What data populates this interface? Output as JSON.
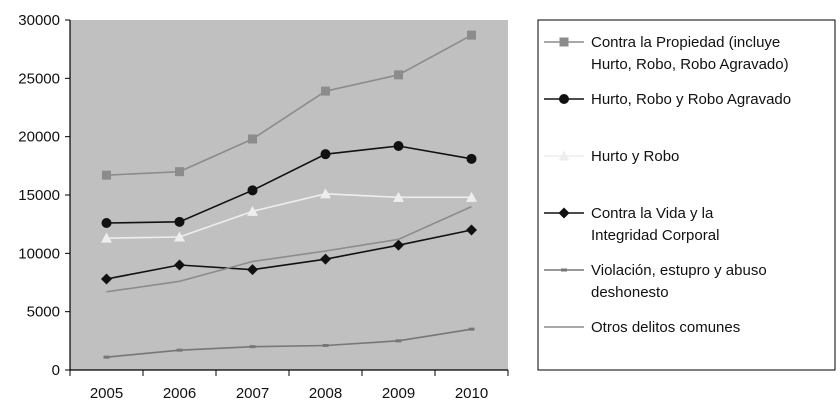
{
  "chart_data": {
    "type": "line",
    "title": "",
    "xlabel": "",
    "ylabel": "",
    "categories": [
      "2005",
      "2006",
      "2007",
      "2008",
      "2009",
      "2010"
    ],
    "ylim": [
      0,
      30000
    ],
    "yticks": [
      0,
      5000,
      10000,
      15000,
      20000,
      25000,
      30000
    ],
    "grid": false,
    "plot_background": "#c0c0c0",
    "legend_position": "right",
    "series": [
      {
        "name": "Contra la Propiedad (incluye Hurto, Robo, Robo Agravado)",
        "legend_lines": [
          "Contra la Propiedad (incluye",
          "Hurto, Robo, Robo Agravado)"
        ],
        "values": [
          16700,
          17000,
          19800,
          23900,
          25300,
          28700
        ],
        "color": "#8c8c8c",
        "marker": "square"
      },
      {
        "name": "Hurto, Robo y Robo Agravado",
        "legend_lines": [
          "Hurto, Robo y Robo Agravado"
        ],
        "values": [
          12600,
          12700,
          15400,
          18500,
          19200,
          18100
        ],
        "color": "#111111",
        "marker": "circle"
      },
      {
        "name": "Hurto y Robo",
        "legend_lines": [
          "Hurto y Robo"
        ],
        "values": [
          11300,
          11400,
          13600,
          15100,
          14800,
          14800
        ],
        "color": "#eeeeee",
        "marker": "triangle"
      },
      {
        "name": "Contra la Vida y la Integridad Corporal",
        "legend_lines": [
          "Contra la Vida y la",
          "Integridad Corporal"
        ],
        "values": [
          7800,
          9000,
          8600,
          9500,
          10700,
          12000
        ],
        "color": "#111111",
        "marker": "diamond"
      },
      {
        "name": "Violación, estupro y abuso deshonesto",
        "legend_lines": [
          "Violación, estupro y abuso",
          "deshonesto"
        ],
        "values": [
          1100,
          1700,
          2000,
          2100,
          2500,
          3500
        ],
        "color": "#777777",
        "marker": "dash"
      },
      {
        "name": "Otros delitos comunes",
        "legend_lines": [
          "Otros delitos comunes"
        ],
        "values": [
          6700,
          7600,
          9300,
          10200,
          11200,
          14000
        ],
        "color": "#8c8c8c",
        "marker": "none"
      }
    ]
  }
}
